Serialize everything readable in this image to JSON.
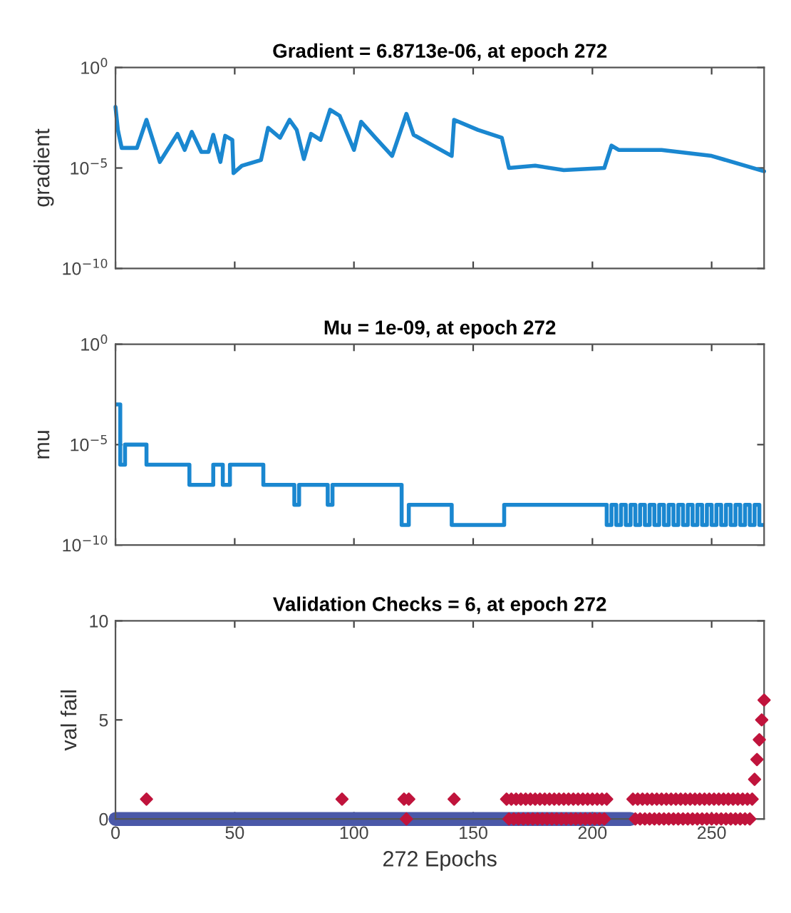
{
  "chart_data": [
    {
      "type": "line",
      "title": "Gradient = 6.8713e-06, at epoch 272",
      "ylabel": "gradient",
      "log": "y",
      "xlim": [
        0,
        272
      ],
      "xticks": [
        {
          "value": 0,
          "label": null
        },
        {
          "value": 50,
          "label": null
        },
        {
          "value": 100,
          "label": null
        },
        {
          "value": 150,
          "label": null
        },
        {
          "value": 200,
          "label": null
        },
        {
          "value": 250,
          "label": null
        }
      ],
      "ylim": [
        1e-10,
        1
      ],
      "yticks": [
        {
          "value": 1,
          "label": "10$^{0}$"
        },
        {
          "value": 1e-05,
          "label": "10$^{−5}$"
        },
        {
          "value": 1e-10,
          "label": "10$^{−10}$"
        }
      ],
      "tick_labels": "y",
      "grid": false,
      "series": [
        {
          "color": "#1a87d0",
          "x": [
            0,
            1,
            2.6,
            9,
            13,
            18.6,
            26,
            29,
            32,
            36,
            39,
            41,
            44,
            46,
            49,
            49.5,
            53,
            61,
            64,
            69,
            73,
            76,
            79,
            82,
            86,
            90,
            94,
            100,
            103,
            109,
            116,
            122,
            125,
            141,
            142,
            152,
            162,
            165,
            176,
            188,
            205,
            208,
            211,
            229,
            250,
            272
          ],
          "values": [
            0.011,
            0.00079,
            0.0001,
            0.0001,
            0.0025,
            2e-05,
            0.0005,
            7.9e-05,
            0.00063,
            6.3e-05,
            6.3e-05,
            0.00045,
            2e-05,
            0.0004,
            0.00025,
            5.6e-06,
            1.3e-05,
            2.5e-05,
            0.001,
            0.00032,
            0.0025,
            0.00079,
            2.8e-05,
            0.0005,
            0.00025,
            0.0079,
            0.004,
            7.9e-05,
            0.002,
            0.00032,
            4e-05,
            0.005,
            0.00045,
            4e-05,
            0.0025,
            0.00079,
            0.00032,
            1e-05,
            1.3e-05,
            7.9e-06,
            1e-05,
            0.00013,
            7.9e-05,
            7.9e-05,
            4e-05,
            6.8713e-06
          ]
        }
      ]
    },
    {
      "type": "step",
      "title": "Mu = 1e-09, at epoch 272",
      "ylabel": "mu",
      "log": "y",
      "xlim": [
        0,
        272
      ],
      "xticks": [
        {
          "value": 0,
          "label": null
        },
        {
          "value": 50,
          "label": null
        },
        {
          "value": 100,
          "label": null
        },
        {
          "value": 150,
          "label": null
        },
        {
          "value": 200,
          "label": null
        },
        {
          "value": 250,
          "label": null
        }
      ],
      "ylim": [
        1e-10,
        1
      ],
      "yticks": [
        {
          "value": 1,
          "label": "10$^{0}$"
        },
        {
          "value": 1e-05,
          "label": "10$^{−5}$"
        },
        {
          "value": 1e-10,
          "label": "10$^{−10}$"
        }
      ],
      "tick_labels": "y",
      "grid": false,
      "series": [
        {
          "color": "#1a87d0",
          "x": [
            0,
            2,
            4,
            13,
            31,
            41,
            45,
            48,
            62,
            75,
            77,
            89,
            91,
            120,
            123,
            141,
            163,
            206,
            208,
            210,
            212,
            214,
            216,
            218,
            220,
            222,
            224,
            226,
            228,
            230,
            232,
            234,
            236,
            238,
            240,
            242,
            244,
            246,
            248,
            250,
            252,
            254,
            256,
            258,
            260,
            262,
            264,
            266,
            268,
            270,
            272
          ],
          "values": [
            0.001,
            1e-06,
            1e-05,
            1e-06,
            1e-07,
            1e-06,
            1e-07,
            1e-06,
            1e-07,
            1e-08,
            1e-07,
            1e-08,
            1e-07,
            1e-09,
            1e-08,
            1e-09,
            1e-08,
            1e-09,
            1e-08,
            1e-09,
            1e-08,
            1e-09,
            1e-08,
            1e-09,
            1e-08,
            1e-09,
            1e-08,
            1e-09,
            1e-08,
            1e-09,
            1e-08,
            1e-09,
            1e-08,
            1e-09,
            1e-08,
            1e-09,
            1e-08,
            1e-09,
            1e-08,
            1e-09,
            1e-08,
            1e-09,
            1e-08,
            1e-09,
            1e-08,
            1e-09,
            1e-08,
            1e-09,
            1e-08,
            1e-09,
            1e-09
          ]
        }
      ]
    },
    {
      "type": "scatter",
      "title": "Validation Checks = 6, at epoch 272",
      "xlabel": "272 Epochs",
      "ylabel": "val fail",
      "xlim": [
        0,
        272
      ],
      "xticks": [
        0,
        50,
        100,
        150,
        200,
        250
      ],
      "ylim": [
        0,
        10
      ],
      "yticks": [
        0,
        5,
        10
      ],
      "grid": false,
      "series": [
        {
          "type": "line",
          "color": "#4a58a8",
          "x": [
            0,
            216
          ],
          "values": [
            0,
            0
          ]
        },
        {
          "color": "#c0143c",
          "marker": "diamond",
          "x": [
            13,
            95,
            121,
            122,
            123,
            142,
            164,
            165,
            166,
            167,
            168,
            169,
            170,
            171,
            172,
            173,
            174,
            175,
            176,
            177,
            178,
            179,
            180,
            181,
            182,
            183,
            184,
            185,
            186,
            187,
            188,
            189,
            190,
            191,
            192,
            193,
            194,
            195,
            196,
            197,
            198,
            199,
            200,
            201,
            202,
            203,
            204,
            205,
            206,
            217,
            218,
            219,
            220,
            221,
            222,
            223,
            224,
            225,
            226,
            227,
            228,
            229,
            230,
            231,
            232,
            233,
            234,
            235,
            236,
            237,
            238,
            239,
            240,
            241,
            242,
            243,
            244,
            245,
            246,
            247,
            248,
            249,
            250,
            251,
            252,
            253,
            254,
            255,
            256,
            257,
            258,
            259,
            260,
            261,
            262,
            263,
            264,
            265,
            266,
            267,
            268,
            269,
            270,
            271,
            272
          ],
          "values": [
            1,
            1,
            1,
            0,
            1,
            1,
            1,
            0,
            1,
            0,
            1,
            0,
            1,
            0,
            1,
            0,
            1,
            0,
            1,
            0,
            1,
            0,
            1,
            0,
            1,
            0,
            1,
            0,
            1,
            0,
            1,
            0,
            1,
            0,
            1,
            0,
            1,
            0,
            1,
            0,
            1,
            0,
            1,
            0,
            1,
            0,
            1,
            0,
            1,
            1,
            0,
            1,
            0,
            1,
            0,
            1,
            0,
            1,
            0,
            1,
            0,
            1,
            0,
            1,
            0,
            1,
            0,
            1,
            0,
            1,
            0,
            1,
            0,
            1,
            0,
            1,
            0,
            1,
            0,
            1,
            0,
            1,
            0,
            1,
            0,
            1,
            0,
            1,
            0,
            1,
            0,
            1,
            0,
            1,
            0,
            1,
            0,
            1,
            0,
            1,
            2,
            3,
            4,
            5,
            6
          ]
        }
      ]
    }
  ]
}
